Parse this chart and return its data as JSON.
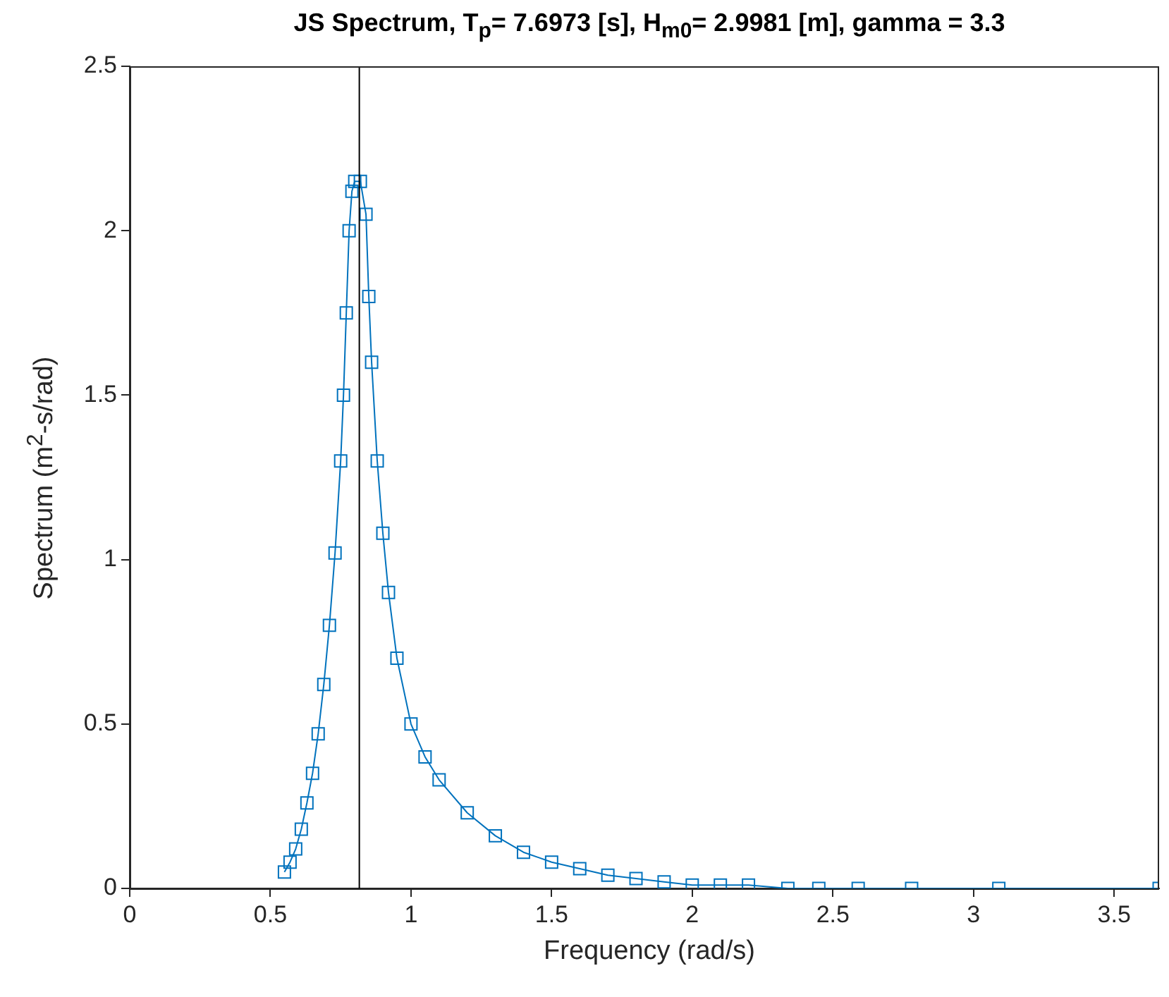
{
  "chart_data": {
    "type": "line",
    "title": "JS Spectrum, T$_{p}$= 7.6973 [s], H$_{m0}$= 2.9981 [m], gamma = 3.3",
    "xlabel": "Frequency (rad/s)",
    "ylabel": "Spectrum (m$^{2}$-s/rad)",
    "series": [
      {
        "color": "#0072bd",
        "x": [
          0.55,
          0.57,
          0.59,
          0.61,
          0.63,
          0.65,
          0.67,
          0.69,
          0.71,
          0.73,
          0.75,
          0.76,
          0.77,
          0.78,
          0.79,
          0.8,
          0.82,
          0.84,
          0.85,
          0.86,
          0.88,
          0.9,
          0.92,
          0.95,
          1.0,
          1.05,
          1.1,
          1.2,
          1.3,
          1.4,
          1.5,
          1.6,
          1.7,
          1.8,
          1.9,
          2.0,
          2.1,
          2.2,
          2.34,
          2.45,
          2.59,
          2.78,
          3.09,
          3.66
        ],
        "values": [
          0.05,
          0.08,
          0.12,
          0.18,
          0.26,
          0.35,
          0.47,
          0.62,
          0.8,
          1.02,
          1.3,
          1.5,
          1.75,
          2.0,
          2.12,
          2.15,
          2.15,
          2.05,
          1.8,
          1.6,
          1.3,
          1.08,
          0.9,
          0.7,
          0.5,
          0.4,
          0.33,
          0.23,
          0.16,
          0.11,
          0.08,
          0.06,
          0.04,
          0.03,
          0.02,
          0.01,
          0.01,
          0.01,
          0,
          0,
          0,
          0,
          0,
          0
        ]
      }
    ],
    "xlim": [
      0,
      3.66
    ],
    "xticks": [
      0,
      0.5,
      1,
      1.5,
      2,
      2.5,
      3,
      3.5
    ],
    "ylim": [
      0,
      2.5
    ],
    "yticks": [
      0,
      0.5,
      1,
      1.5,
      2,
      2.5
    ],
    "ref_lines": [
      {
        "axis": "x",
        "value": 0.8163,
        "color": "#000000"
      }
    ],
    "marker": "square",
    "line_style": "solid",
    "grid": false,
    "legend": false
  }
}
